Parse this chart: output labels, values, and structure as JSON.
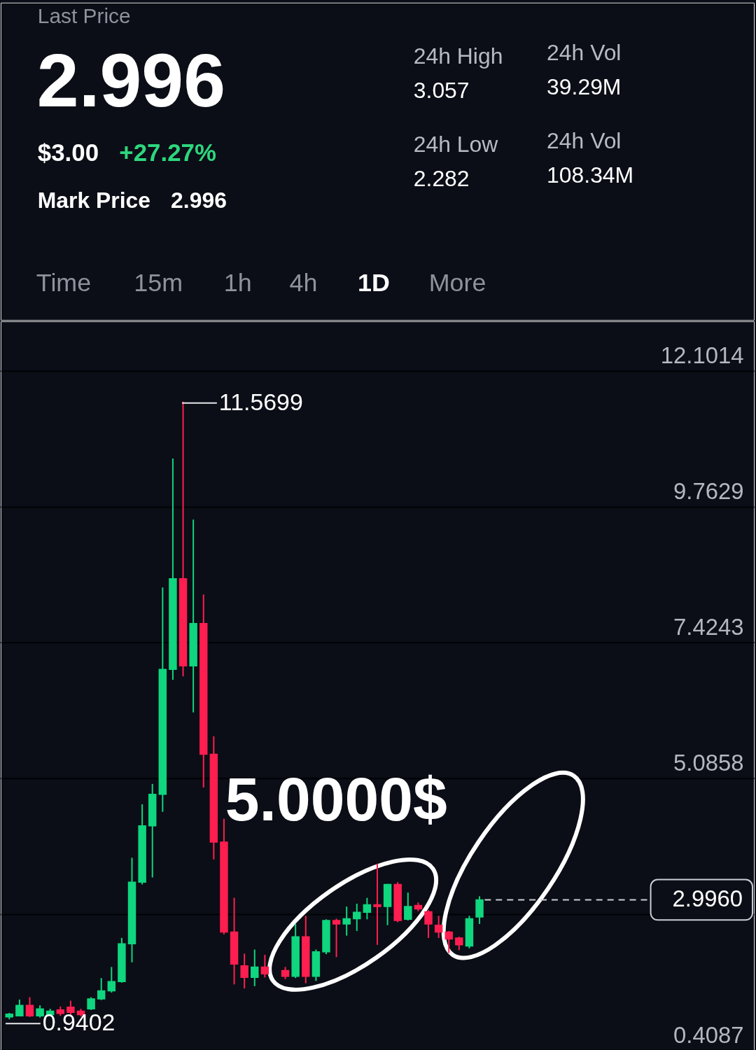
{
  "chart_data": [
    {
      "type": "other",
      "annotations": [
        "Last Price",
        "2.996",
        "$3.00",
        "+27.27%",
        "Mark Price",
        "2.996",
        "24h High",
        "3.057",
        "24h Low",
        "2.282",
        "24h Vol",
        "39.29M",
        "24h Vol",
        "108.34M",
        "Time",
        "15m",
        "1h",
        "4h",
        "1D",
        "More"
      ]
    },
    {
      "type": "candlestick",
      "categories": [
        null,
        null,
        null,
        null,
        null,
        null,
        null,
        null,
        null,
        null,
        null,
        null,
        null,
        null,
        null,
        null,
        null,
        null,
        null,
        null,
        null,
        null,
        null,
        null,
        null,
        null,
        null,
        null,
        null,
        null,
        null,
        null,
        null,
        null,
        null,
        null,
        null,
        null,
        null,
        null,
        null,
        null,
        null,
        null,
        null,
        null,
        null,
        null,
        null,
        null,
        null,
        null,
        null,
        null,
        null,
        null,
        null,
        null,
        null,
        null,
        null,
        null,
        null,
        null,
        null,
        null,
        null,
        null,
        null,
        null,
        null,
        null,
        null
      ],
      "ohlc": [
        [
          0.98,
          1.05,
          0.9402,
          1.03
        ],
        [
          1.0,
          1.28,
          0.99,
          1.18
        ],
        [
          1.18,
          1.32,
          0.98,
          1.0
        ],
        [
          1.0,
          1.18,
          0.97,
          1.12
        ],
        [
          1.02,
          1.12,
          1.0,
          1.08
        ],
        [
          1.1,
          1.16,
          1.0,
          1.04
        ],
        [
          1.15,
          1.26,
          1.02,
          1.06
        ],
        [
          1.08,
          1.12,
          0.99,
          1.02
        ],
        [
          1.12,
          1.32,
          1.1,
          1.29
        ],
        [
          1.29,
          1.65,
          1.27,
          1.43
        ],
        [
          1.43,
          1.84,
          1.4,
          1.59
        ],
        [
          1.59,
          2.34,
          1.57,
          2.24
        ],
        [
          2.24,
          3.72,
          1.92,
          3.3
        ],
        [
          3.3,
          4.64,
          3.26,
          4.27
        ],
        [
          4.27,
          4.99,
          3.38,
          4.81
        ],
        [
          4.81,
          8.37,
          4.51,
          6.96
        ],
        [
          6.96,
          10.59,
          6.78,
          8.52
        ],
        [
          8.52,
          11.5699,
          6.84,
          7.02
        ],
        [
          7.02,
          9.54,
          6.22,
          7.75
        ],
        [
          7.75,
          8.25,
          4.93,
          5.5
        ],
        [
          5.5,
          5.81,
          3.69,
          3.99
        ],
        [
          3.99,
          4.39,
          2.4,
          2.44
        ],
        [
          2.44,
          3.03,
          1.54,
          1.89
        ],
        [
          1.86,
          2.07,
          1.47,
          1.66
        ],
        [
          1.66,
          2.14,
          1.51,
          1.84
        ],
        [
          1.84,
          2.05,
          1.66,
          1.72
        ],
        null,
        [
          1.78,
          1.84,
          1.63,
          1.68
        ],
        [
          1.68,
          2.58,
          1.65,
          2.36
        ],
        [
          2.36,
          2.72,
          1.56,
          1.68
        ],
        [
          1.68,
          2.14,
          1.6,
          2.1
        ],
        [
          2.1,
          2.66,
          2.06,
          2.64
        ],
        [
          2.64,
          2.67,
          2.01,
          2.58
        ],
        [
          2.58,
          2.88,
          2.38,
          2.67
        ],
        [
          2.67,
          2.93,
          2.46,
          2.78
        ],
        [
          2.78,
          3.03,
          2.66,
          2.91
        ],
        [
          2.91,
          3.62,
          2.22,
          2.88
        ],
        [
          2.88,
          3.27,
          2.56,
          3.26
        ],
        [
          3.26,
          3.3,
          2.61,
          2.64
        ],
        [
          2.66,
          3.12,
          2.64,
          2.88
        ],
        [
          2.9,
          2.95,
          2.8,
          2.84
        ],
        [
          2.79,
          2.82,
          2.34,
          2.58
        ],
        [
          2.56,
          2.72,
          2.34,
          2.44
        ],
        [
          2.44,
          2.46,
          2.08,
          2.32
        ],
        [
          2.34,
          2.36,
          2.13,
          2.22
        ],
        [
          2.2,
          2.72,
          2.16,
          2.67
        ],
        [
          2.7,
          3.057,
          2.58,
          2.996
        ],
        null,
        null,
        null,
        null,
        null,
        null,
        null,
        null,
        null,
        null,
        null,
        null,
        null,
        null,
        null,
        null,
        null,
        null,
        null,
        null,
        null,
        null,
        null,
        null,
        null,
        null
      ],
      "colors": [
        "#0fd67f",
        "#0fd67f",
        "#ff1e50",
        "#0fd67f",
        "#0fd67f",
        "#ff1e50",
        "#ff1e50",
        "#ff1e50",
        "#0fd67f",
        "#0fd67f",
        "#0fd67f",
        "#0fd67f",
        "#0fd67f",
        "#0fd67f",
        "#0fd67f",
        "#0fd67f",
        "#0fd67f",
        "#ff1e50",
        "#0fd67f",
        "#ff1e50",
        "#ff1e50",
        "#ff1e50",
        "#ff1e50",
        "#ff1e50",
        "#0fd67f",
        "#ff1e50",
        null,
        "#ff1e50",
        "#0fd67f",
        "#ff1e50",
        "#0fd67f",
        "#0fd67f",
        "#ff1e50",
        "#0fd67f",
        "#0fd67f",
        "#0fd67f",
        "#ff1e50",
        "#0fd67f",
        "#ff1e50",
        "#0fd67f",
        "#ff1e50",
        "#ff1e50",
        "#ff1e50",
        "#ff1e50",
        "#ff1e50",
        "#0fd67f",
        "#0fd67f",
        null,
        null,
        null,
        null,
        null,
        null,
        null,
        null,
        null,
        null,
        null,
        null,
        null,
        null,
        null,
        null,
        null,
        null,
        null,
        null,
        null,
        null,
        null,
        null,
        null,
        null
      ],
      "ylim": [
        0.4087,
        12.95
      ],
      "yticks": [
        0.4087,
        {
          "value": 2.7473,
          "label": null
        },
        5.0858,
        7.4243,
        9.7629,
        12.1014
      ],
      "grid": "y",
      "ref_lines": [
        {
          "axis": "y",
          "value": 2.996,
          "label": "2.9960",
          "line_style": "dashed",
          "color": "#c9cdd4"
        }
      ],
      "annotations": [
        "11.5699",
        "0.9402",
        "5.0000$"
      ]
    }
  ]
}
